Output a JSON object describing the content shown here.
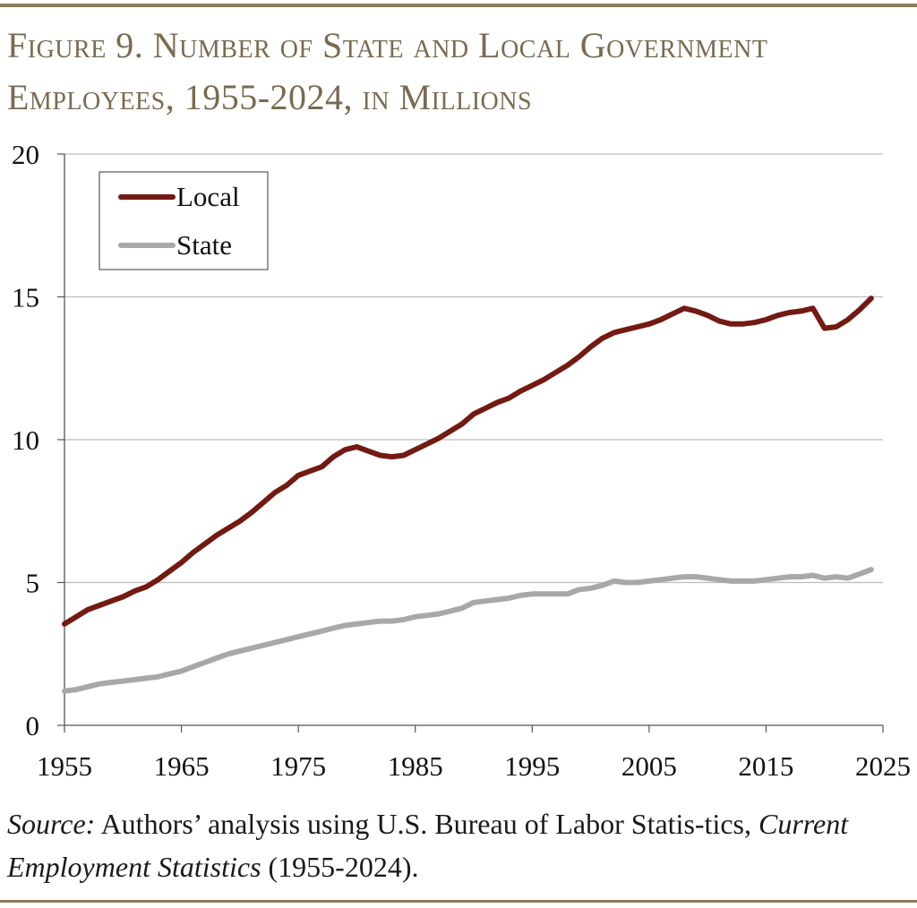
{
  "figure": {
    "title_line1": "Figure 9. Number of State and Local Government",
    "title_line2": "Employees, 1955-2024, in Millions"
  },
  "colors": {
    "local": "#731a13",
    "state": "#a8a8a8",
    "rule": "#8c7b5a",
    "title": "#7a6a4f",
    "grid": "#bdbdbd"
  },
  "chart_data": {
    "type": "line",
    "title": "Number of State and Local Government Employees, 1955-2024, in Millions",
    "xlabel": "",
    "ylabel": "",
    "xlim": [
      1955,
      2025
    ],
    "ylim": [
      0,
      20
    ],
    "x_ticks": [
      "1955",
      "1965",
      "1975",
      "1985",
      "1995",
      "2005",
      "2015",
      "2025"
    ],
    "y_ticks": [
      "0",
      "5",
      "10",
      "15",
      "20"
    ],
    "grid": "horizontal",
    "legend_position": "top-left",
    "x": [
      1955,
      1956,
      1957,
      1958,
      1959,
      1960,
      1961,
      1962,
      1963,
      1964,
      1965,
      1966,
      1967,
      1968,
      1969,
      1970,
      1971,
      1972,
      1973,
      1974,
      1975,
      1976,
      1977,
      1978,
      1979,
      1980,
      1981,
      1982,
      1983,
      1984,
      1985,
      1986,
      1987,
      1988,
      1989,
      1990,
      1991,
      1992,
      1993,
      1994,
      1995,
      1996,
      1997,
      1998,
      1999,
      2000,
      2001,
      2002,
      2003,
      2004,
      2005,
      2006,
      2007,
      2008,
      2009,
      2010,
      2011,
      2012,
      2013,
      2014,
      2015,
      2016,
      2017,
      2018,
      2019,
      2020,
      2021,
      2022,
      2023,
      2024
    ],
    "series": [
      {
        "name": "Local",
        "values": [
          3.55,
          3.8,
          4.05,
          4.2,
          4.35,
          4.5,
          4.7,
          4.85,
          5.1,
          5.4,
          5.7,
          6.05,
          6.35,
          6.65,
          6.9,
          7.15,
          7.45,
          7.8,
          8.15,
          8.4,
          8.75,
          8.9,
          9.05,
          9.4,
          9.65,
          9.75,
          9.6,
          9.45,
          9.4,
          9.45,
          9.65,
          9.85,
          10.05,
          10.3,
          10.55,
          10.9,
          11.1,
          11.3,
          11.45,
          11.7,
          11.9,
          12.1,
          12.35,
          12.6,
          12.9,
          13.25,
          13.55,
          13.75,
          13.85,
          13.95,
          14.05,
          14.2,
          14.4,
          14.6,
          14.5,
          14.35,
          14.15,
          14.05,
          14.05,
          14.1,
          14.2,
          14.35,
          14.45,
          14.5,
          14.6,
          13.9,
          13.95,
          14.2,
          14.55,
          14.95
        ]
      },
      {
        "name": "State",
        "values": [
          1.2,
          1.25,
          1.35,
          1.45,
          1.5,
          1.55,
          1.6,
          1.65,
          1.7,
          1.8,
          1.9,
          2.05,
          2.2,
          2.35,
          2.5,
          2.6,
          2.7,
          2.8,
          2.9,
          3.0,
          3.1,
          3.2,
          3.3,
          3.4,
          3.5,
          3.55,
          3.6,
          3.65,
          3.65,
          3.7,
          3.8,
          3.85,
          3.9,
          4.0,
          4.1,
          4.3,
          4.35,
          4.4,
          4.45,
          4.55,
          4.6,
          4.6,
          4.6,
          4.6,
          4.75,
          4.8,
          4.9,
          5.05,
          5.0,
          5.0,
          5.05,
          5.1,
          5.15,
          5.2,
          5.2,
          5.15,
          5.1,
          5.05,
          5.05,
          5.05,
          5.1,
          5.15,
          5.2,
          5.2,
          5.25,
          5.15,
          5.2,
          5.15,
          5.3,
          5.45
        ]
      }
    ]
  },
  "legend": {
    "local_label": "Local",
    "state_label": "State"
  },
  "source": {
    "prefix": "Source:",
    "text_1": " Authors’ analysis using U.S. Bureau of Labor Statis-tics, ",
    "dataset": "Current Employment Statistics",
    "text_2": " (1955-2024)."
  }
}
